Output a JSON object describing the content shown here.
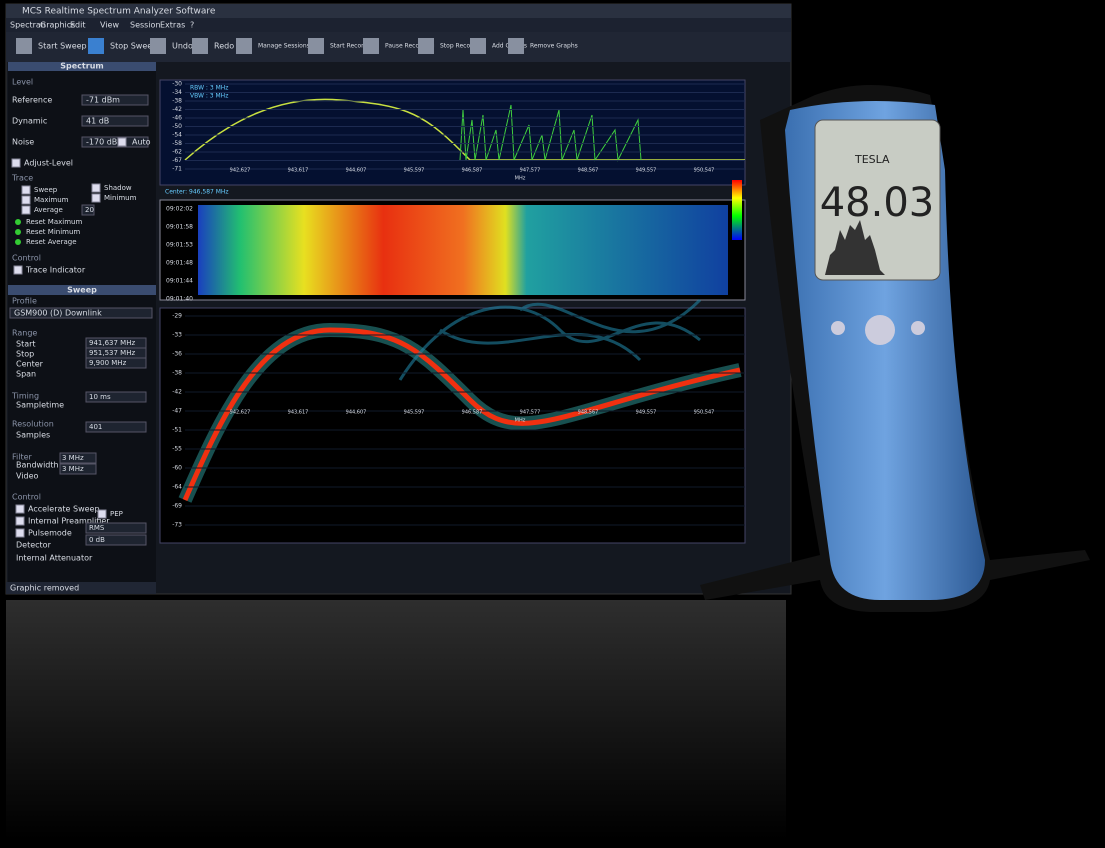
{
  "window": {
    "title": "MCS Realtime Spectrum Analyzer Software",
    "menu": [
      "Spectran",
      "Graphics",
      "Edit",
      "View",
      "Session",
      "Extras",
      "?"
    ],
    "toolbar": [
      "Start Sweep",
      "Stop Sweep",
      "Undo",
      "Redo",
      "Manage Sessions",
      "Start Recording",
      "Pause Recording",
      "Stop Recording",
      "Add Graphs",
      "Remove Graphs"
    ]
  },
  "spectrum_panel": {
    "title": "Spectrum",
    "level_heading": "Level",
    "fields": [
      {
        "label": "Reference",
        "value": "-71 dBm"
      },
      {
        "label": "Dynamic",
        "value": "41 dB"
      },
      {
        "label": "Noise",
        "value": "-170 dBm"
      }
    ],
    "adjust_level": "Adjust-Level",
    "auto": "Auto",
    "trace_heading": "Trace",
    "trace_left": [
      "Sweep",
      "Maximum",
      "Average"
    ],
    "trace_right": [
      "Shadow",
      "Minimum"
    ],
    "average_count": "20",
    "actions": [
      "Reset Maximum",
      "Reset Minimum",
      "Reset Average"
    ],
    "control_heading": "Control",
    "trace_indicator": "Trace Indicator"
  },
  "sweep_panel": {
    "title": "Sweep",
    "profile_heading": "Profile",
    "profile": "GSM900 (D) Downlink",
    "range_heading": "Range",
    "range_labels": [
      "Start",
      "Stop",
      "Center",
      "Span"
    ],
    "range_values": [
      "941,637 MHz",
      "951,537 MHz",
      "9,900 MHz"
    ],
    "timing_heading": "Timing",
    "sampletime": {
      "label": "Sampletime",
      "value": "10 ms"
    },
    "resolution_heading": "Resolution",
    "samples": {
      "label": "Samples",
      "value": "401"
    },
    "filter_heading": "Filter",
    "bandwidth": {
      "label": "Bandwidth",
      "value": "3 MHz"
    },
    "video": {
      "label": "Video",
      "value": "3 MHz"
    },
    "control_heading": "Control",
    "checks": [
      "Accelerate Sweep",
      "Internal Preamplifier",
      "Pulsemode"
    ],
    "pep": "PEP",
    "detector": {
      "label": "Detector",
      "value": "RMS"
    },
    "attenuator": {
      "label": "Internal Attenuator",
      "value": "0 dB"
    }
  },
  "status": "Graphic removed",
  "spectrum_graph": {
    "info": [
      "RBW : 3 MHz",
      "VBW : 3 MHz"
    ],
    "yticks": [
      "-30",
      "-34",
      "-38",
      "-42",
      "-46",
      "-50",
      "-54",
      "-58",
      "-62",
      "-67",
      "-71"
    ],
    "xticks": [
      "942,627",
      "943,617",
      "944,607",
      "945,597",
      "946,587",
      "947,577",
      "948,567",
      "949,557",
      "950,547"
    ],
    "x_unit": "MHz",
    "center": "Center: 946,587 MHz"
  },
  "waterfall": {
    "times": [
      "09:02:02",
      "09:01:58",
      "09:01:53",
      "09:01:48",
      "09:01:44",
      "09:01:40"
    ]
  },
  "persistence": {
    "yticks": [
      "-29",
      "-33",
      "-36",
      "-38",
      "-42",
      "-47",
      "-51",
      "-55",
      "-60",
      "-64",
      "-69",
      "-73"
    ],
    "xticks": [
      "942,627",
      "943,617",
      "944,607",
      "945,597",
      "946,587",
      "947,577",
      "948,567",
      "949,557",
      "950,547"
    ],
    "x_unit": "MHz"
  },
  "device": {
    "brand": "TESLA",
    "reading": "48.03"
  }
}
